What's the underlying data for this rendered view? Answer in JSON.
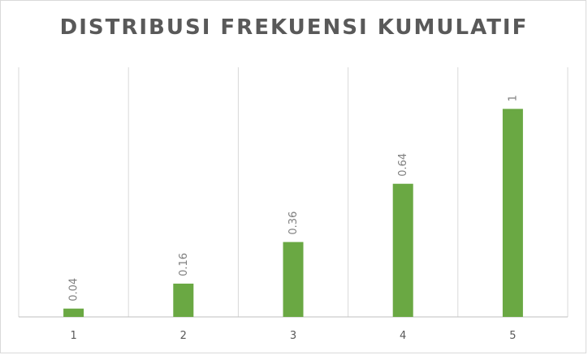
{
  "chart_data": {
    "type": "bar",
    "title": "DISTRIBUSI FREKUENSI KUMULATIF",
    "categories": [
      "1",
      "2",
      "3",
      "4",
      "5"
    ],
    "values": [
      0.04,
      0.16,
      0.36,
      0.64,
      1
    ],
    "data_labels": [
      "0.04",
      "0.16",
      "0.36",
      "0.64",
      "1"
    ],
    "xlabel": "",
    "ylabel": "",
    "ylim": [
      0,
      1.2
    ],
    "grid": "vertical",
    "legend": "none",
    "colors": {
      "bar": "#6aa843",
      "grid": "#d9d9d9",
      "axis": "#bfbfbf"
    }
  }
}
